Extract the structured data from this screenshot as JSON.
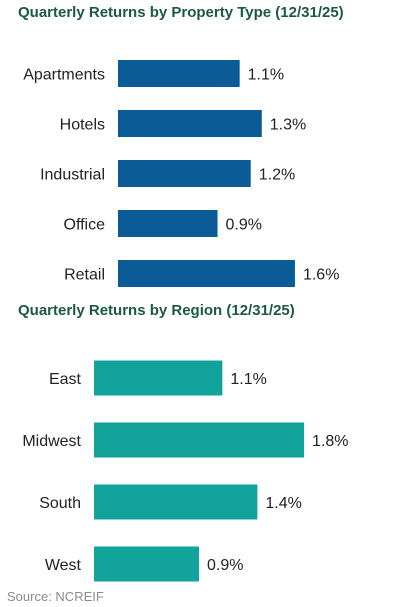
{
  "chart_data": [
    {
      "type": "bar",
      "orientation": "horizontal",
      "title": "Quarterly Returns by Property Type (12/31/25)",
      "categories": [
        "Apartments",
        "Hotels",
        "Industrial",
        "Office",
        "Retail"
      ],
      "values": [
        1.1,
        1.3,
        1.2,
        0.9,
        1.6
      ],
      "value_labels": [
        "1.1%",
        "1.3%",
        "1.2%",
        "0.9%",
        "1.6%"
      ],
      "unit": "%",
      "bar_color": "#0b5b96",
      "xlim": [
        0,
        1.6
      ],
      "grid": false,
      "legend": "none"
    },
    {
      "type": "bar",
      "orientation": "horizontal",
      "title": "Quarterly Returns by Region (12/31/25)",
      "categories": [
        "East",
        "Midwest",
        "South",
        "West"
      ],
      "values": [
        1.1,
        1.8,
        1.4,
        0.9
      ],
      "value_labels": [
        "1.1%",
        "1.8%",
        "1.4%",
        "0.9%"
      ],
      "unit": "%",
      "bar_color": "#12a39a",
      "xlim": [
        0,
        1.8
      ],
      "grid": false,
      "legend": "none"
    }
  ],
  "source": "Source: NCREIF",
  "title_color": "#1b5a41"
}
